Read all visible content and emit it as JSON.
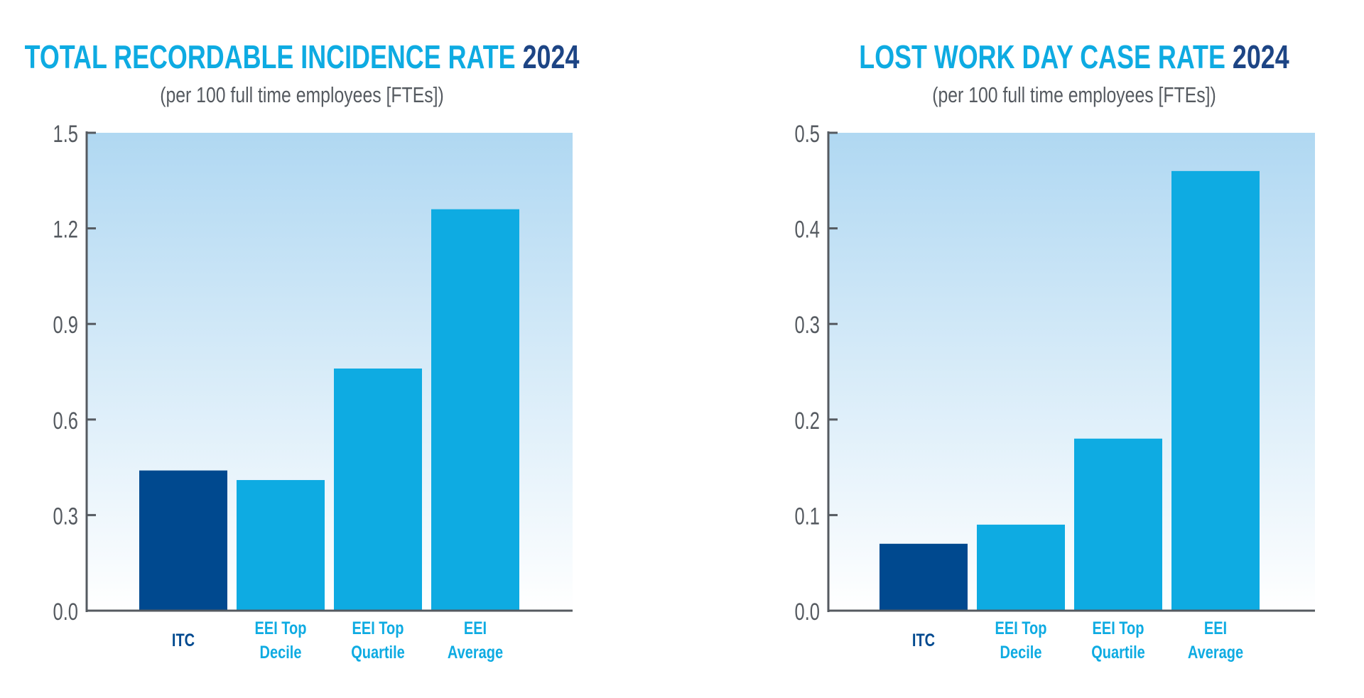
{
  "colors": {
    "highlight": "#00498f",
    "bar": "#0eabe2",
    "title": "#0eabe2",
    "title_year": "#1d4585",
    "axis": "#555a60",
    "bg_top": "#b0d8f2",
    "bg_bottom": "#ffffff"
  },
  "chart_data": [
    {
      "type": "bar",
      "title": "TOTAL RECORDABLE INCIDENCE RATE",
      "title_year": "2024",
      "subtitle": "(per 100 full time employees [FTEs])",
      "categories": [
        [
          "ITC"
        ],
        [
          "EEI Top",
          "Decile"
        ],
        [
          "EEI Top",
          "Quartile"
        ],
        [
          "EEI",
          "Average"
        ]
      ],
      "values": [
        0.44,
        0.41,
        0.76,
        1.26
      ],
      "highlight_index": 0,
      "ylim": [
        0,
        1.5
      ],
      "yticks": [
        "0.0",
        "0.3",
        "0.6",
        "0.9",
        "1.2",
        "1.5"
      ],
      "grid": false
    },
    {
      "type": "bar",
      "title": "LOST WORK DAY CASE RATE",
      "title_year": "2024",
      "subtitle": "(per 100 full time employees [FTEs])",
      "categories": [
        [
          "ITC"
        ],
        [
          "EEI Top",
          "Decile"
        ],
        [
          "EEI Top",
          "Quartile"
        ],
        [
          "EEI",
          "Average"
        ]
      ],
      "values": [
        0.07,
        0.09,
        0.18,
        0.46
      ],
      "highlight_index": 0,
      "ylim": [
        0,
        0.5
      ],
      "yticks": [
        "0.0",
        "0.1",
        "0.2",
        "0.3",
        "0.4",
        "0.5"
      ],
      "grid": false
    }
  ]
}
